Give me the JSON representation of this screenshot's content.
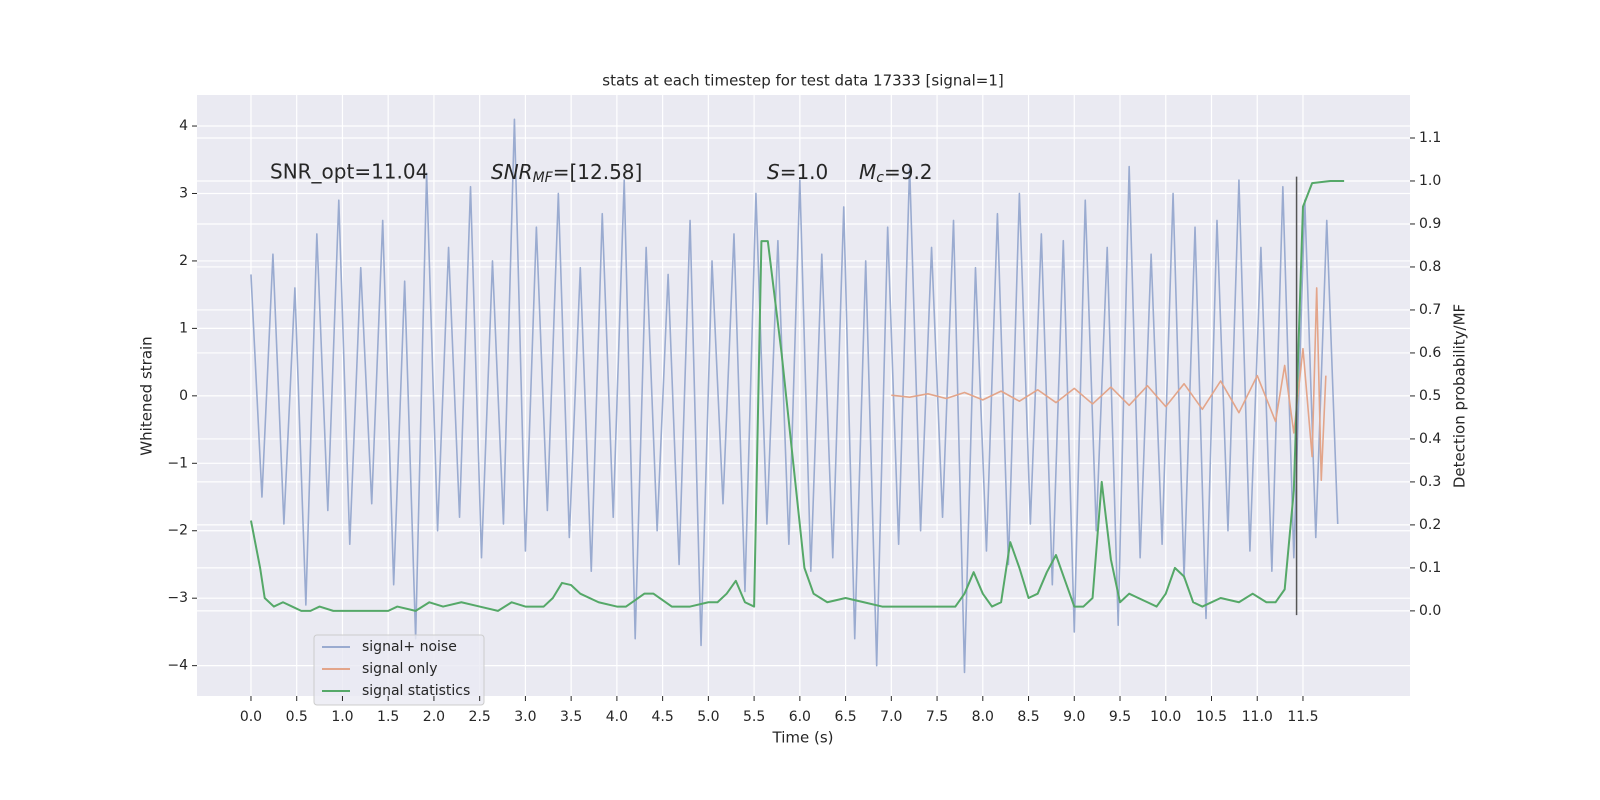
{
  "chart_data": {
    "type": "line",
    "title": "stats at each timestep for test data 17333 [signal=1]",
    "xlabel": "Time (s)",
    "ylabel": "Whitened strain",
    "y2label": "Detection probability/MF",
    "xlim": [
      -0.59,
      12.67
    ],
    "ylim": [
      -4.45,
      4.46
    ],
    "y2lim": [
      -0.198,
      1.2
    ],
    "xticks": [
      {
        "value": 0,
        "label": "0.0"
      },
      0.5,
      {
        "value": 1,
        "label": "1.0"
      },
      1.5,
      {
        "value": 2,
        "label": "2.0"
      },
      2.5,
      {
        "value": 3,
        "label": "3.0"
      },
      3.5,
      {
        "value": 4,
        "label": "4.0"
      },
      4.5,
      {
        "value": 5,
        "label": "5.0"
      },
      5.5,
      {
        "value": 6,
        "label": "6.0"
      },
      6.5,
      {
        "value": 7,
        "label": "7.0"
      },
      7.5,
      {
        "value": 8,
        "label": "8.0"
      },
      8.5,
      {
        "value": 9,
        "label": "9.0"
      },
      9.5,
      {
        "value": 10,
        "label": "10.0"
      },
      10.5,
      {
        "value": 11,
        "label": "11.0"
      },
      11.5
    ],
    "yticks": [
      {
        "value": -4,
        "label": "−4"
      },
      {
        "value": -3,
        "label": "−3"
      },
      {
        "value": -2,
        "label": "−2"
      },
      {
        "value": -1,
        "label": "−1"
      },
      0,
      1,
      2,
      3,
      4
    ],
    "y2ticks": [
      {
        "value": 0,
        "label": "0.0"
      },
      0.1,
      0.2,
      0.3,
      0.4,
      0.5,
      0.6,
      0.7,
      0.8,
      0.9,
      {
        "value": 1,
        "label": "1.0"
      },
      1.1
    ],
    "grid": true,
    "legend": "lower left",
    "annotations": [
      {
        "text": "SNR_opt=11.04"
      },
      {
        "base": "SNR",
        "sub": "MF",
        "rest": "=[12.58]"
      },
      {
        "base": "S",
        "rest": "=1.0"
      },
      {
        "base": "M",
        "sub": "c",
        "rest": "=9.2"
      }
    ],
    "vline": {
      "x": 11.43,
      "y2": [
        -0.01,
        1.01
      ],
      "color": "#555555"
    },
    "series": [
      {
        "name": "signal+ noise",
        "color": "#9aabd0",
        "x": [
          0,
          0.12,
          0.24,
          0.36,
          0.48,
          0.6,
          0.72,
          0.84,
          0.96,
          1.08,
          1.2,
          1.32,
          1.44,
          1.56,
          1.68,
          1.8,
          1.92,
          2.04,
          2.16,
          2.28,
          2.4,
          2.52,
          2.64,
          2.76,
          2.88,
          3,
          3.12,
          3.24,
          3.36,
          3.48,
          3.6,
          3.72,
          3.84,
          3.96,
          4.08,
          4.2,
          4.32,
          4.44,
          4.56,
          4.68,
          4.8,
          4.92,
          5.04,
          5.16,
          5.28,
          5.4,
          5.52,
          5.64,
          5.76,
          5.88,
          6,
          6.12,
          6.24,
          6.36,
          6.48,
          6.6,
          6.72,
          6.84,
          6.96,
          7.08,
          7.2,
          7.32,
          7.44,
          7.56,
          7.68,
          7.8,
          7.92,
          8.04,
          8.16,
          8.28,
          8.4,
          8.52,
          8.64,
          8.76,
          8.88,
          9,
          9.12,
          9.24,
          9.36,
          9.48,
          9.6,
          9.72,
          9.84,
          9.96,
          10.08,
          10.2,
          10.32,
          10.44,
          10.56,
          10.68,
          10.8,
          10.92,
          11.04,
          11.16,
          11.28,
          11.4,
          11.52,
          11.64,
          11.76,
          11.88
        ],
        "values": [
          1.8,
          -1.5,
          2.1,
          -1.9,
          1.6,
          -3.1,
          2.4,
          -1.7,
          2.9,
          -2.2,
          1.9,
          -1.6,
          2.6,
          -2.8,
          1.7,
          -3.6,
          3.3,
          -2.0,
          2.2,
          -1.8,
          3.1,
          -2.4,
          2.0,
          -1.9,
          4.1,
          -2.3,
          2.5,
          -1.7,
          3.0,
          -2.1,
          1.9,
          -2.6,
          2.7,
          -1.8,
          3.2,
          -3.6,
          2.2,
          -2.0,
          1.8,
          -2.5,
          2.6,
          -3.7,
          2.0,
          -1.6,
          2.4,
          -2.9,
          3.0,
          -1.9,
          2.3,
          -2.2,
          3.2,
          -2.6,
          2.1,
          -2.4,
          2.8,
          -3.6,
          2.0,
          -4.0,
          2.5,
          -2.2,
          3.4,
          -2.0,
          2.2,
          -1.8,
          2.6,
          -4.1,
          1.9,
          -2.3,
          2.7,
          -2.5,
          3.0,
          -1.9,
          2.4,
          -2.8,
          2.3,
          -3.5,
          2.9,
          -2.0,
          2.2,
          -3.4,
          3.4,
          -2.4,
          2.1,
          -2.2,
          3.0,
          -2.7,
          2.5,
          -3.3,
          2.6,
          -2.0,
          3.2,
          -2.3,
          2.2,
          -2.6,
          3.1,
          -2.4,
          2.9,
          -2.1,
          2.6,
          -1.9
        ]
      },
      {
        "name": "signal only",
        "color": "#e3a58a",
        "x": [
          7.0,
          7.2,
          7.4,
          7.6,
          7.8,
          8.0,
          8.2,
          8.4,
          8.6,
          8.8,
          9.0,
          9.2,
          9.4,
          9.6,
          9.8,
          10.0,
          10.2,
          10.4,
          10.6,
          10.8,
          11.0,
          11.2,
          11.3,
          11.4,
          11.5,
          11.6,
          11.65,
          11.7,
          11.75
        ],
        "values": [
          0.01,
          -0.02,
          0.03,
          -0.04,
          0.05,
          -0.06,
          0.07,
          -0.08,
          0.09,
          -0.1,
          0.11,
          -0.12,
          0.13,
          -0.14,
          0.15,
          -0.16,
          0.18,
          -0.2,
          0.22,
          -0.25,
          0.3,
          -0.38,
          0.45,
          -0.55,
          0.7,
          -0.9,
          1.6,
          -1.25,
          0.3
        ]
      },
      {
        "name": "signal statistics",
        "color": "#55a868",
        "axis": "y2",
        "x": [
          0,
          0.1,
          0.15,
          0.25,
          0.35,
          0.45,
          0.55,
          0.65,
          0.75,
          0.9,
          1.1,
          1.3,
          1.5,
          1.6,
          1.8,
          1.95,
          2.1,
          2.3,
          2.5,
          2.7,
          2.85,
          3.0,
          3.2,
          3.3,
          3.4,
          3.5,
          3.6,
          3.8,
          4.0,
          4.1,
          4.3,
          4.4,
          4.6,
          4.8,
          5.0,
          5.1,
          5.2,
          5.3,
          5.4,
          5.5,
          5.58,
          5.65,
          5.8,
          5.95,
          6.05,
          6.15,
          6.3,
          6.5,
          6.7,
          6.9,
          7.2,
          7.5,
          7.7,
          7.8,
          7.9,
          8.0,
          8.1,
          8.2,
          8.3,
          8.4,
          8.5,
          8.6,
          8.7,
          8.8,
          8.9,
          9.0,
          9.1,
          9.2,
          9.3,
          9.4,
          9.5,
          9.6,
          9.7,
          9.8,
          9.9,
          10.0,
          10.1,
          10.2,
          10.3,
          10.4,
          10.6,
          10.8,
          10.95,
          11.1,
          11.2,
          11.3,
          11.4,
          11.5,
          11.6,
          11.8,
          11.95
        ],
        "values": [
          0.21,
          0.1,
          0.03,
          0.01,
          0.02,
          0.01,
          0,
          0,
          0.01,
          0,
          0,
          0,
          0,
          0.01,
          0,
          0.02,
          0.01,
          0.02,
          0.01,
          0,
          0.02,
          0.01,
          0.01,
          0.03,
          0.065,
          0.06,
          0.04,
          0.02,
          0.01,
          0.01,
          0.04,
          0.04,
          0.01,
          0.01,
          0.02,
          0.02,
          0.04,
          0.07,
          0.02,
          0.01,
          0.86,
          0.86,
          0.6,
          0.3,
          0.1,
          0.04,
          0.02,
          0.03,
          0.02,
          0.01,
          0.01,
          0.01,
          0.01,
          0.04,
          0.09,
          0.04,
          0.01,
          0.02,
          0.16,
          0.1,
          0.03,
          0.04,
          0.09,
          0.13,
          0.07,
          0.01,
          0.01,
          0.03,
          0.3,
          0.12,
          0.02,
          0.04,
          0.03,
          0.02,
          0.01,
          0.04,
          0.1,
          0.08,
          0.02,
          0.01,
          0.03,
          0.02,
          0.04,
          0.02,
          0.02,
          0.05,
          0.28,
          0.94,
          0.995,
          1.0,
          1.0
        ]
      }
    ]
  }
}
